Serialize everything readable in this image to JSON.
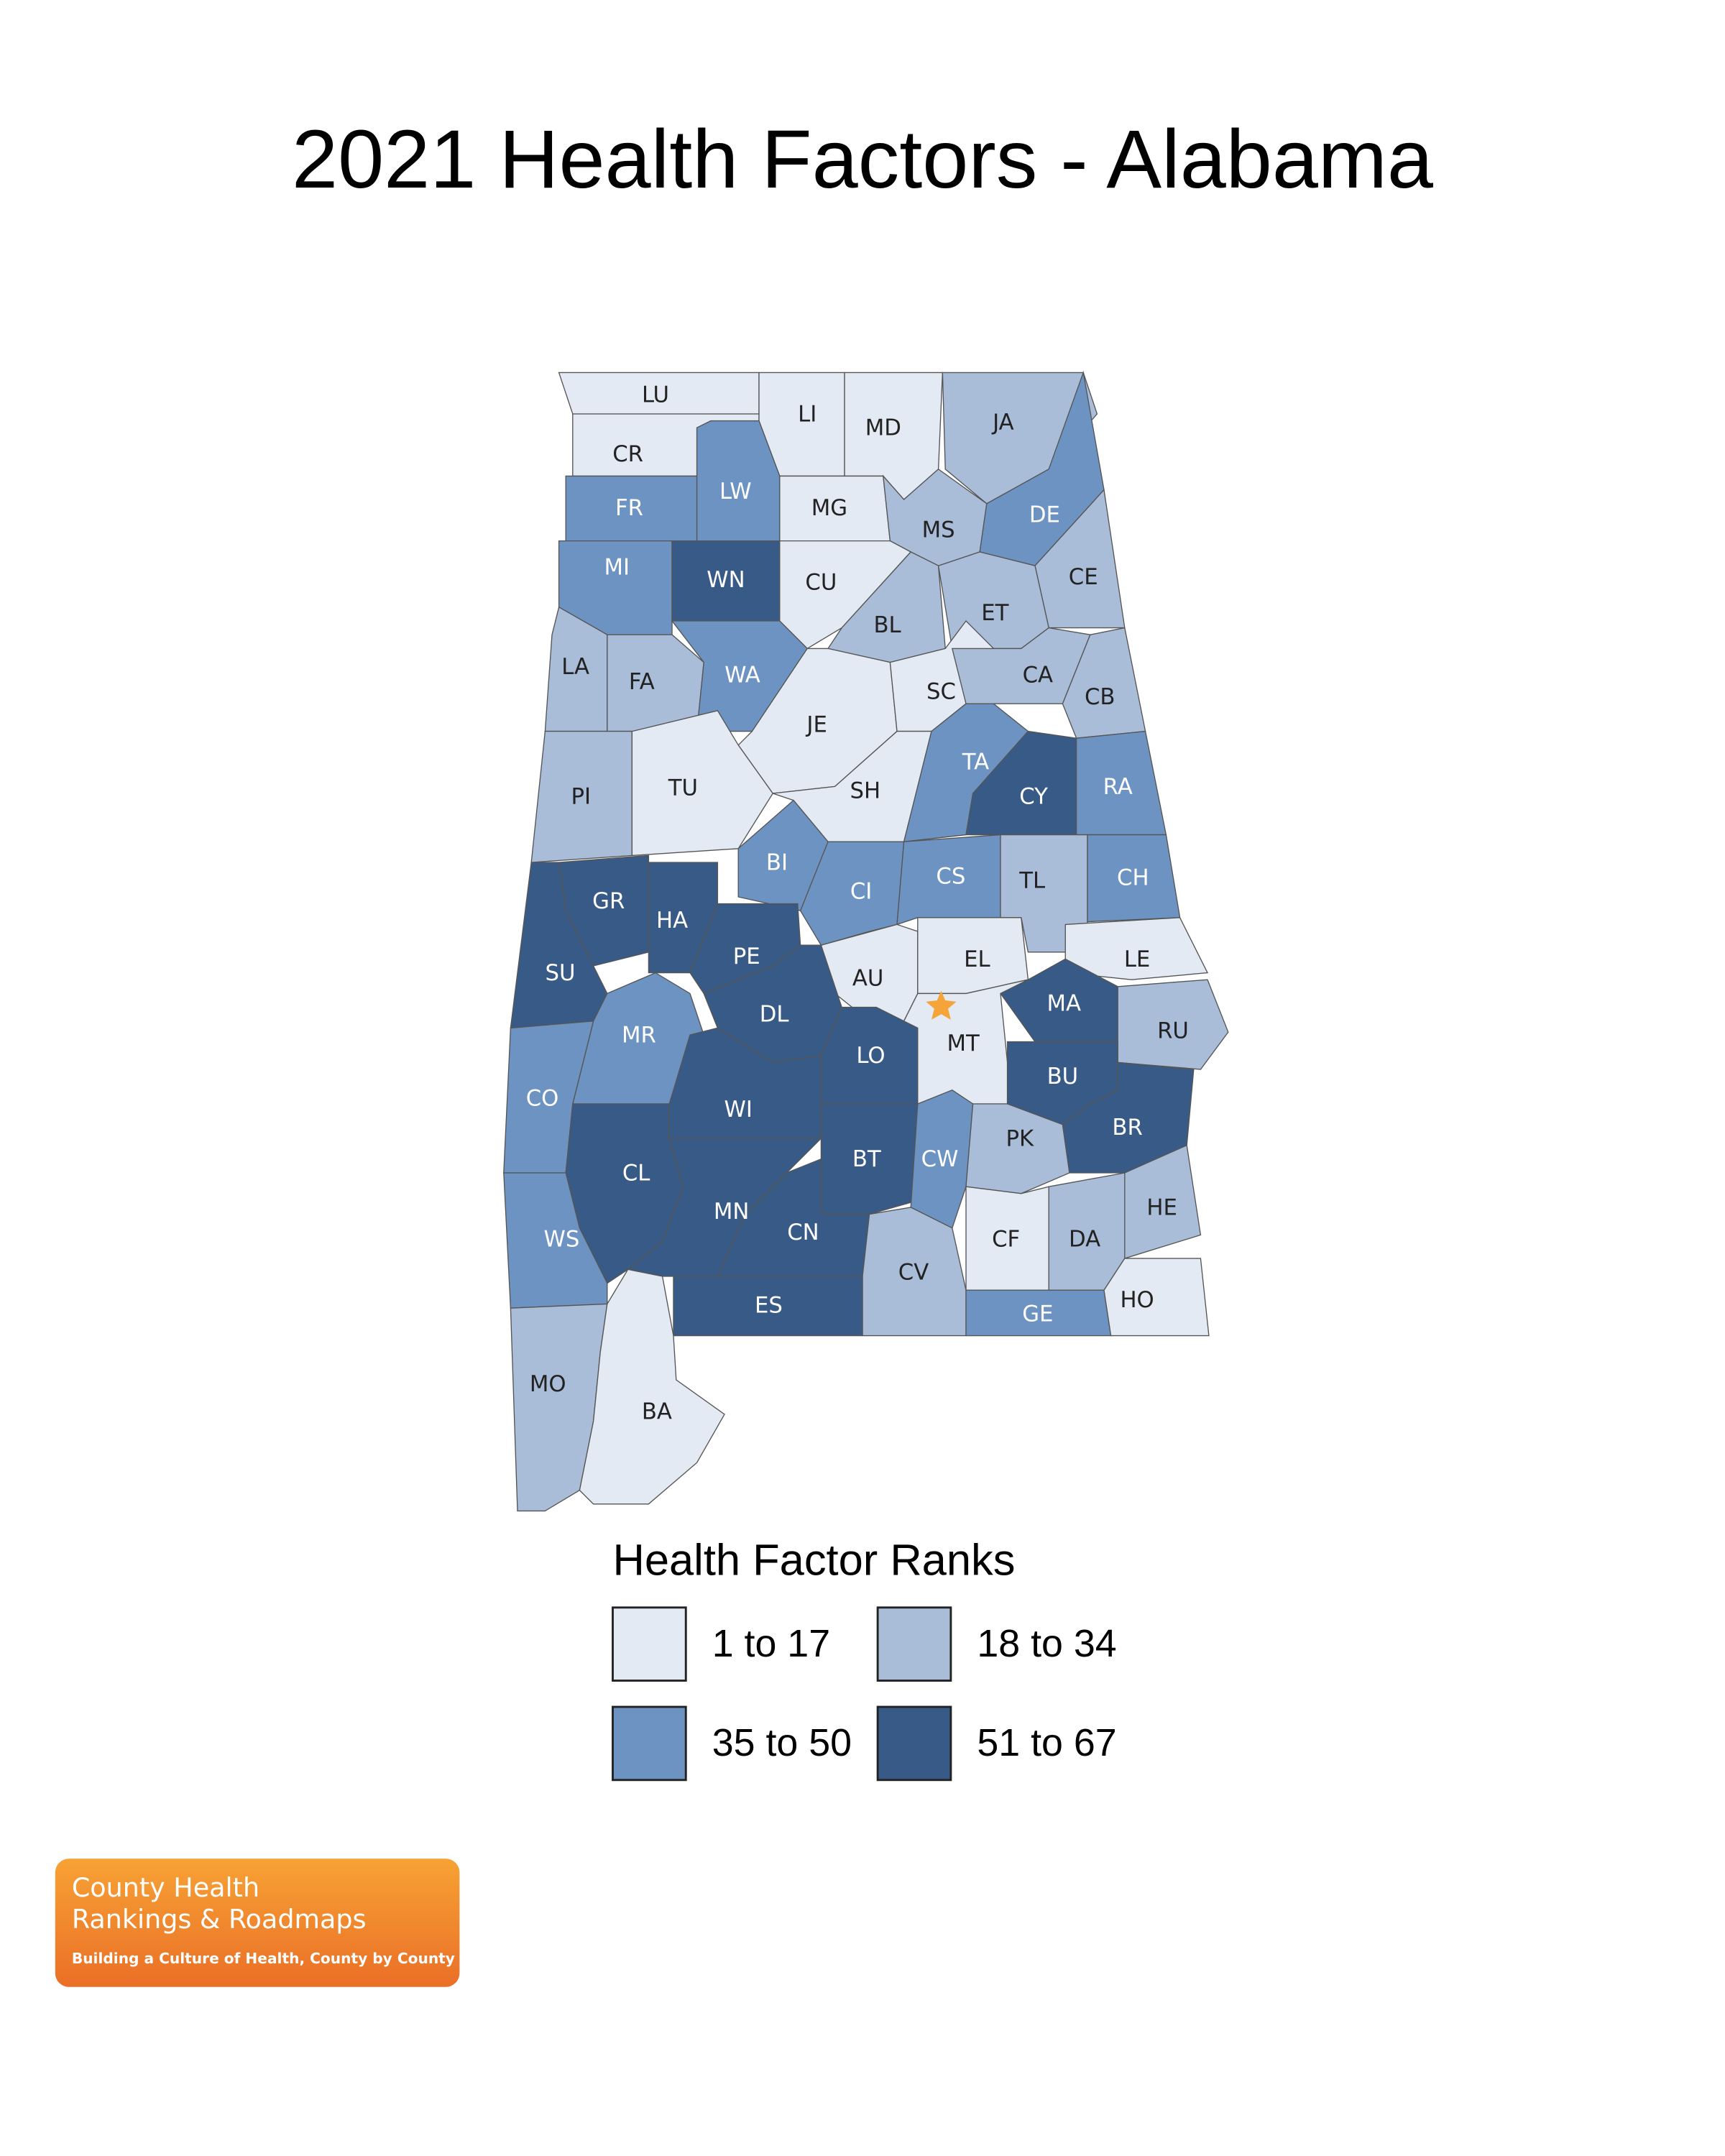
{
  "title": "2021 Health Factors - Alabama",
  "legend": {
    "title": "Health Factor Ranks",
    "items": [
      {
        "class": 1,
        "label": "1 to 17",
        "color": "#e3eaf3"
      },
      {
        "class": 2,
        "label": "18 to 34",
        "color": "#a9bdd9"
      },
      {
        "class": 3,
        "label": "35 to 50",
        "color": "#6d93c3"
      },
      {
        "class": 4,
        "label": "51 to 67",
        "color": "#385a86"
      }
    ]
  },
  "counties": [
    {
      "abbr": "LU",
      "class": 1
    },
    {
      "abbr": "CR",
      "class": 1
    },
    {
      "abbr": "LI",
      "class": 1
    },
    {
      "abbr": "MD",
      "class": 1
    },
    {
      "abbr": "JA",
      "class": 2
    },
    {
      "abbr": "FR",
      "class": 3
    },
    {
      "abbr": "LW",
      "class": 3
    },
    {
      "abbr": "MG",
      "class": 1
    },
    {
      "abbr": "MS",
      "class": 2
    },
    {
      "abbr": "DE",
      "class": 3
    },
    {
      "abbr": "CE",
      "class": 2
    },
    {
      "abbr": "MI",
      "class": 3
    },
    {
      "abbr": "WN",
      "class": 4
    },
    {
      "abbr": "CU",
      "class": 1
    },
    {
      "abbr": "BL",
      "class": 2
    },
    {
      "abbr": "ET",
      "class": 2
    },
    {
      "abbr": "LA",
      "class": 2
    },
    {
      "abbr": "FA",
      "class": 2
    },
    {
      "abbr": "WA",
      "class": 3
    },
    {
      "abbr": "JE",
      "class": 1
    },
    {
      "abbr": "SC",
      "class": 1
    },
    {
      "abbr": "CA",
      "class": 2
    },
    {
      "abbr": "CB",
      "class": 2
    },
    {
      "abbr": "PI",
      "class": 2
    },
    {
      "abbr": "TU",
      "class": 1
    },
    {
      "abbr": "SH",
      "class": 1
    },
    {
      "abbr": "TA",
      "class": 3
    },
    {
      "abbr": "CY",
      "class": 4
    },
    {
      "abbr": "RA",
      "class": 3
    },
    {
      "abbr": "BI",
      "class": 3
    },
    {
      "abbr": "CI",
      "class": 3
    },
    {
      "abbr": "CS",
      "class": 3
    },
    {
      "abbr": "TL",
      "class": 2
    },
    {
      "abbr": "CH",
      "class": 3
    },
    {
      "abbr": "GR",
      "class": 4
    },
    {
      "abbr": "HA",
      "class": 4
    },
    {
      "abbr": "SU",
      "class": 4
    },
    {
      "abbr": "PE",
      "class": 4
    },
    {
      "abbr": "AU",
      "class": 1
    },
    {
      "abbr": "EL",
      "class": 1
    },
    {
      "abbr": "LE",
      "class": 1
    },
    {
      "abbr": "MA",
      "class": 4
    },
    {
      "abbr": "RU",
      "class": 2
    },
    {
      "abbr": "MR",
      "class": 3
    },
    {
      "abbr": "DL",
      "class": 4
    },
    {
      "abbr": "LO",
      "class": 4
    },
    {
      "abbr": "MT",
      "class": 1
    },
    {
      "abbr": "BU",
      "class": 4
    },
    {
      "abbr": "CO",
      "class": 3
    },
    {
      "abbr": "WI",
      "class": 4
    },
    {
      "abbr": "BT",
      "class": 4
    },
    {
      "abbr": "CW",
      "class": 3
    },
    {
      "abbr": "PK",
      "class": 2
    },
    {
      "abbr": "BR",
      "class": 4
    },
    {
      "abbr": "CL",
      "class": 4
    },
    {
      "abbr": "MN",
      "class": 4
    },
    {
      "abbr": "CN",
      "class": 4
    },
    {
      "abbr": "HE",
      "class": 2
    },
    {
      "abbr": "WS",
      "class": 3
    },
    {
      "abbr": "CF",
      "class": 1
    },
    {
      "abbr": "DA",
      "class": 2
    },
    {
      "abbr": "CV",
      "class": 2
    },
    {
      "abbr": "GE",
      "class": 3
    },
    {
      "abbr": "HO",
      "class": 1
    },
    {
      "abbr": "ES",
      "class": 4
    },
    {
      "abbr": "MO",
      "class": 2
    },
    {
      "abbr": "BA",
      "class": 1
    }
  ],
  "logo": {
    "line1": "County Health",
    "line2": "Rankings & Roadmaps",
    "tagline": "Building a Culture of Health, County by County"
  }
}
